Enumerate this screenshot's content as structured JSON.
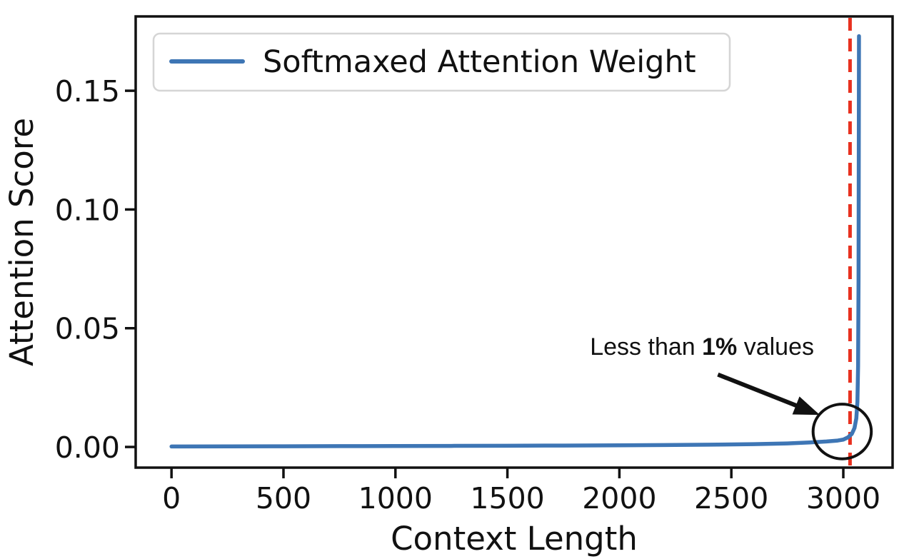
{
  "figure": {
    "background": "#ffffff",
    "text_color": "#111111"
  },
  "chart_data": {
    "type": "line",
    "title": "",
    "xlabel": "Context Length",
    "ylabel": "Attention Score",
    "xlim": [
      -160,
      3220
    ],
    "ylim": [
      -0.0087,
      0.1813
    ],
    "x_ticks": [
      0,
      500,
      1000,
      1500,
      2000,
      2500,
      3000
    ],
    "x_tick_labels": [
      "0",
      "500",
      "1000",
      "1500",
      "2000",
      "2500",
      "3000"
    ],
    "y_ticks": [
      0,
      0.05,
      0.1,
      0.15
    ],
    "y_tick_labels": [
      "0.00",
      "0.05",
      "0.10",
      "0.15"
    ],
    "grid": false,
    "legend": {
      "position": "upper left",
      "entries": [
        {
          "label": "Softmaxed Attention Weight",
          "color": "#3e76b5",
          "style": "solid"
        }
      ]
    },
    "series": [
      {
        "name": "Softmaxed Attention Weight",
        "color": "#3e76b5",
        "line_width": 5.5,
        "x": [
          0,
          250,
          500,
          750,
          1000,
          1250,
          1500,
          1750,
          2000,
          2200,
          2400,
          2600,
          2750,
          2850,
          2925,
          2975,
          3000,
          3020,
          3038,
          3050,
          3058,
          3063,
          3066,
          3068,
          3069,
          3070
        ],
        "y": [
          0.0002,
          0.00025,
          0.0003,
          0.00035,
          0.0004,
          0.00045,
          0.0005,
          0.0006,
          0.0007,
          0.0008,
          0.00095,
          0.0012,
          0.0015,
          0.0019,
          0.0023,
          0.0027,
          0.0031,
          0.004,
          0.0055,
          0.008,
          0.012,
          0.019,
          0.034,
          0.07,
          0.12,
          0.173
        ]
      }
    ],
    "vline": {
      "x": 3030,
      "color": "#e8311f",
      "style": "dashed",
      "line_width": 5
    },
    "annotation": {
      "text_parts": [
        "Less than ",
        "1%",
        " values"
      ],
      "bold_part_index": 1,
      "color": "#111111",
      "text_x": 2369,
      "text_y": 0.0424,
      "arrow_from": [
        2440,
        0.0305
      ],
      "arrow_to": [
        2895,
        0.0135
      ],
      "circle": {
        "cx": 2995,
        "cy": 0.0065,
        "rx": 130,
        "ry": 0.0115
      }
    }
  }
}
